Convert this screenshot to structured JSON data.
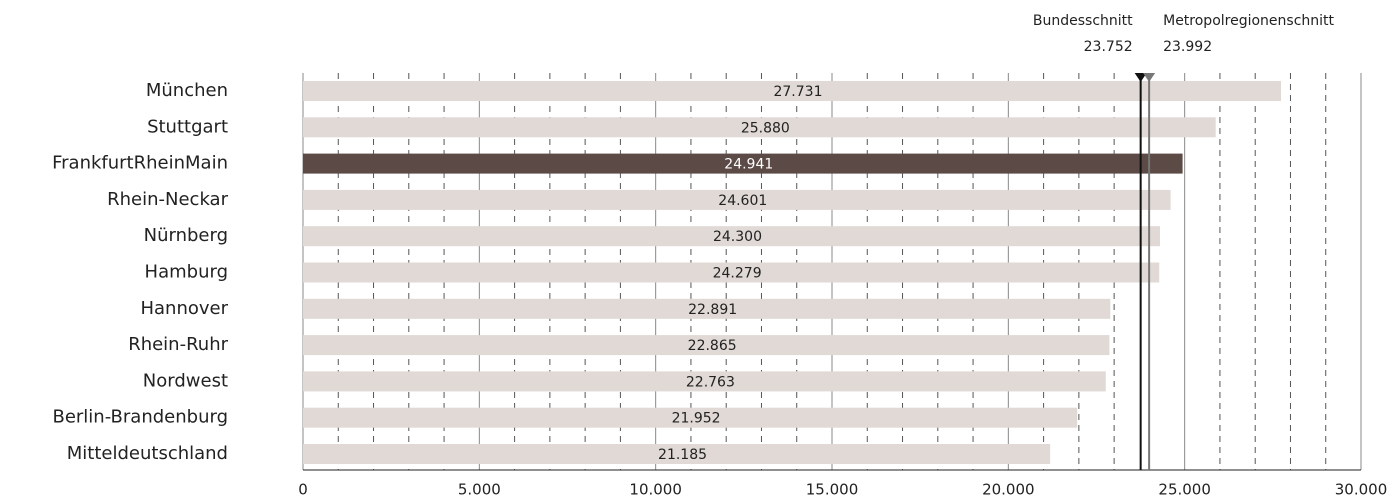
{
  "chart_data": {
    "type": "barh",
    "categories": [
      "München",
      "Stuttgart",
      "FrankfurtRheinMain",
      "Rhein-Neckar",
      "Nürnberg",
      "Hamburg",
      "Hannover",
      "Rhein-Ruhr",
      "Nordwest",
      "Berlin-Brandenburg",
      "Mitteldeutschland"
    ],
    "values": [
      27731,
      25880,
      24941,
      24601,
      24300,
      24279,
      22891,
      22865,
      22763,
      21952,
      21185
    ],
    "value_labels": [
      "27.731",
      "25.880",
      "24.941",
      "24.601",
      "24.300",
      "24.279",
      "22.891",
      "22.865",
      "22.763",
      "21.952",
      "21.185"
    ],
    "colors": [
      "#e0d9d5",
      "#e0d9d5",
      "#5b4a45",
      "#e0d9d5",
      "#e0d9d5",
      "#e0d9d5",
      "#e0d9d5",
      "#e0d9d5",
      "#e0d9d5",
      "#e0d9d5",
      "#e0d9d5"
    ],
    "xlim": [
      0,
      30000
    ],
    "xticks": [
      0,
      {
        "value": 5000,
        "label": "5.000"
      },
      {
        "value": 10000,
        "label": "10.000"
      },
      {
        "value": 15000,
        "label": "15.000"
      },
      {
        "value": 20000,
        "label": "20.000"
      },
      {
        "value": 25000,
        "label": "25.000"
      },
      {
        "value": 30000,
        "label": "30.000"
      }
    ],
    "minor_xticks": [
      1000,
      2000,
      3000,
      4000,
      6000,
      7000,
      8000,
      9000,
      11000,
      12000,
      13000,
      14000,
      16000,
      17000,
      18000,
      19000,
      21000,
      22000,
      23000,
      24000,
      26000,
      27000,
      28000,
      29000
    ],
    "grid": true,
    "reference_lines": [
      {
        "name": "Bundesschnitt",
        "value": 23752,
        "value_label": "23.752",
        "color": "#111111"
      },
      {
        "name": "Metropolregionenschnitt",
        "value": 23992,
        "value_label": "23.992",
        "color": "#777777"
      }
    ]
  }
}
